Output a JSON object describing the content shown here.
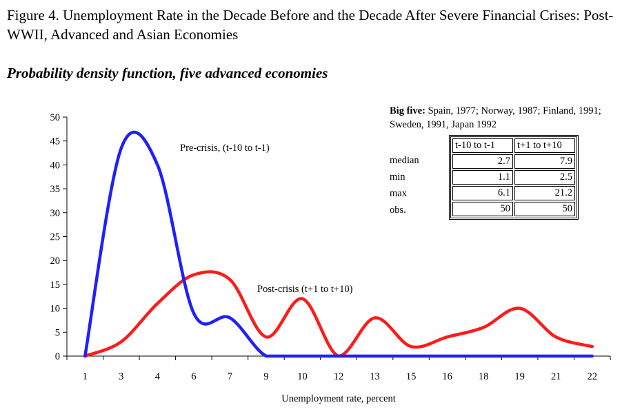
{
  "figure": {
    "title": "Figure 4. Unemployment Rate in the Decade Before and the Decade After Severe Financial Crises: Post-WWII, Advanced and Asian Economies",
    "subtitle": "Probability density function, five advanced economies"
  },
  "stats": {
    "heading_bold": "Big five:",
    "heading_rest": " Spain, 1977; Norway, 1987; Finland, 1991; Sweden, 1991, Japan 1992",
    "columns": [
      "t-10 to t-1",
      "t+1 to t+10"
    ],
    "rows": [
      {
        "label": "median",
        "pre": "2.7",
        "post": "7.9"
      },
      {
        "label": "min",
        "pre": "1.1",
        "post": "2.5"
      },
      {
        "label": "max",
        "pre": "6.1",
        "post": "21.2"
      },
      {
        "label": "obs.",
        "pre": "50",
        "post": "50"
      }
    ]
  },
  "chart_data": {
    "type": "line",
    "xlabel": "Unemployment rate, percent",
    "ylabel": "",
    "categories": [
      "1",
      "3",
      "4",
      "6",
      "7",
      "9",
      "10",
      "12",
      "13",
      "15",
      "16",
      "18",
      "19",
      "21",
      "22"
    ],
    "ylim": [
      0,
      50
    ],
    "yticks": [
      0,
      5,
      10,
      15,
      20,
      25,
      30,
      35,
      40,
      45,
      50
    ],
    "grid": false,
    "series": [
      {
        "name": "Pre-crisis, (t-10 to t-1)",
        "color": "#1f1fff",
        "values": [
          0,
          43.5,
          40,
          9,
          8,
          0,
          0,
          0,
          0,
          0,
          0,
          0,
          0,
          0,
          0
        ]
      },
      {
        "name": "Post-crisis (t+1 to t+10)",
        "color": "#ff1a1a",
        "values": [
          0,
          3,
          11,
          17,
          16,
          4,
          12,
          0,
          8,
          2,
          4,
          6,
          10,
          4,
          2
        ]
      }
    ]
  }
}
